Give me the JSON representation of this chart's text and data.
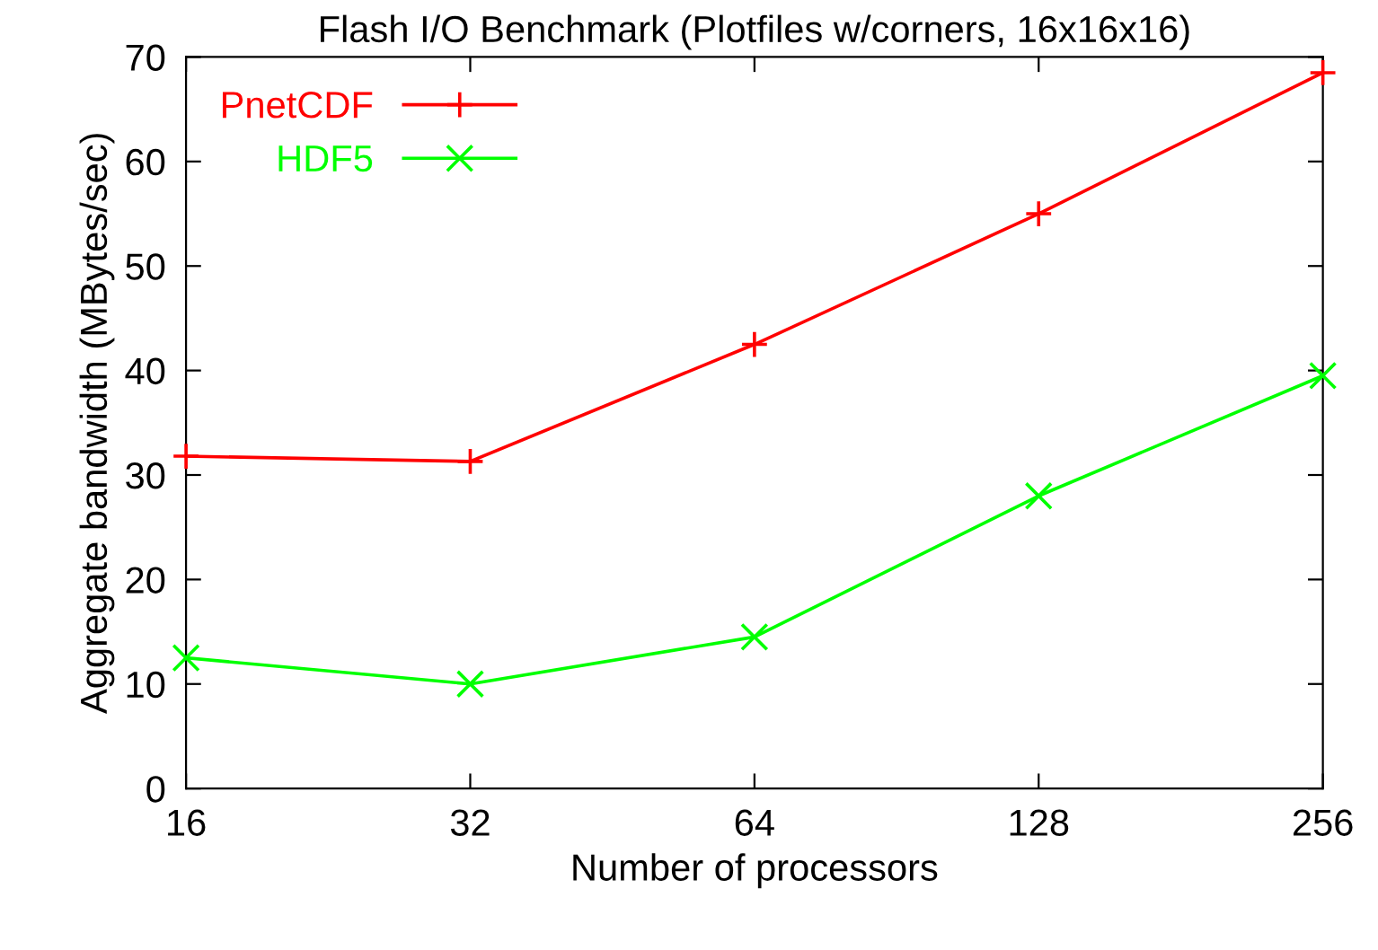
{
  "chart_data": {
    "type": "line",
    "title": "Flash I/O Benchmark (Plotfiles w/corners, 16x16x16)",
    "xlabel": "Number of processors",
    "ylabel": "Aggregate bandwidth (MBytes/sec)",
    "log": "x",
    "x": [
      16,
      32,
      64,
      128,
      256
    ],
    "xlim": [
      16,
      256
    ],
    "xticks": [
      16,
      32,
      64,
      128,
      256
    ],
    "ylim": [
      0,
      70
    ],
    "yticks": [
      0,
      10,
      20,
      30,
      40,
      50,
      60,
      70
    ],
    "series": [
      {
        "name": "PnetCDF",
        "color": "#ff0000",
        "marker": "plus",
        "values": [
          31.8,
          31.3,
          42.5,
          55,
          68.5
        ]
      },
      {
        "name": "HDF5",
        "color": "#00ff00",
        "marker": "cross",
        "values": [
          12.5,
          10,
          14.5,
          28,
          39.5
        ]
      }
    ],
    "legend": "top left",
    "grid": false,
    "line_style": "solid"
  }
}
